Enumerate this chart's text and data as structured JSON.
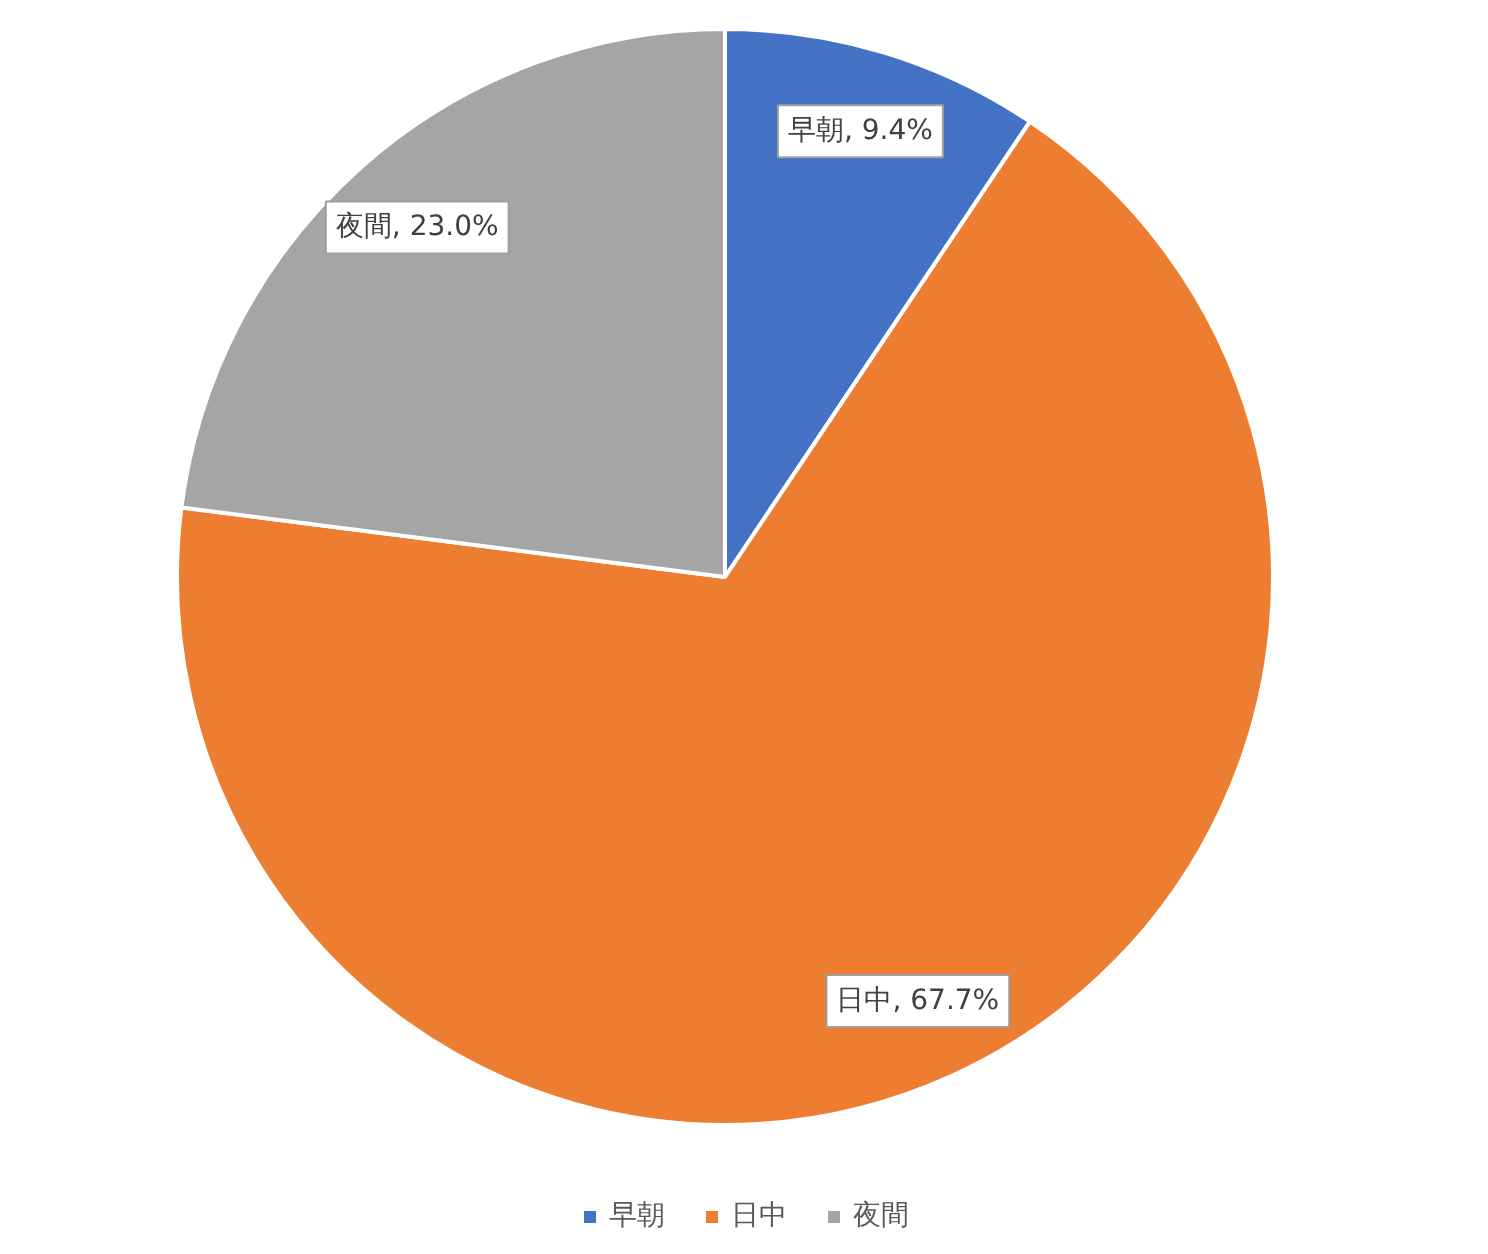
{
  "chart_data": {
    "type": "pie",
    "categories": [
      "早朝",
      "日中",
      "夜間"
    ],
    "values": [
      9.4,
      67.7,
      23.0
    ],
    "value_labels": [
      "早朝, 9.4%",
      "日中, 67.7%",
      "夜間, 23.0%"
    ],
    "colors": [
      "#4472c4",
      "#ed7d31",
      "#a5a5a5"
    ],
    "legend": "bottom"
  }
}
